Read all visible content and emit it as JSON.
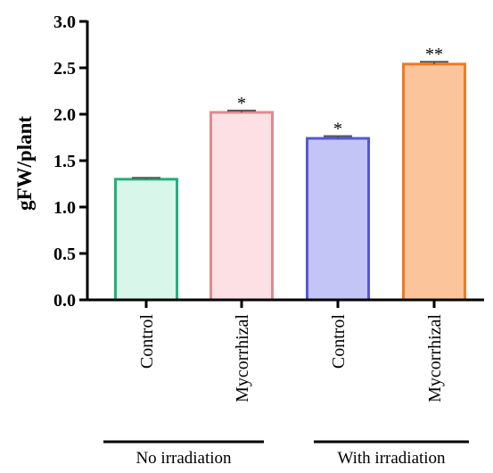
{
  "chart_data": {
    "type": "bar",
    "ylabel": "gFW/plant",
    "xlabel": "",
    "ylim": [
      0,
      3.0
    ],
    "yticks": [
      "0.0",
      "0.5",
      "1.0",
      "1.5",
      "2.0",
      "2.5",
      "3.0"
    ],
    "grid": false,
    "categories": [
      "Control",
      "Mycorrhizal",
      "Control",
      "Mycorrhizal"
    ],
    "values": [
      1.3,
      2.02,
      1.74,
      2.54
    ],
    "errors": [
      0.015,
      0.02,
      0.025,
      0.025
    ],
    "significance": [
      "",
      "*",
      "*",
      "**"
    ],
    "groups": [
      {
        "label": "No irradiation",
        "categories": [
          0,
          1
        ]
      },
      {
        "label": "With irradiation",
        "categories": [
          2,
          3
        ]
      }
    ],
    "colors": {
      "fill": [
        "#d9f6ea",
        "#fde0e3",
        "#c4c5f7",
        "#fcc49a"
      ],
      "stroke": [
        "#23b07c",
        "#e08a90",
        "#5658d6",
        "#ee7a22"
      ]
    }
  }
}
